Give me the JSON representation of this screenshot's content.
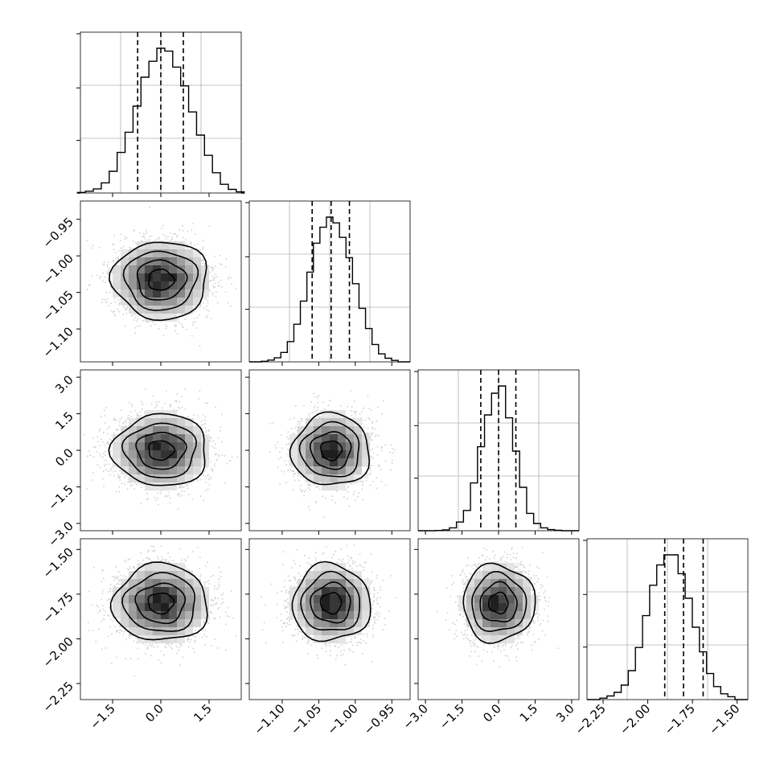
{
  "chart_data": {
    "type": "corner",
    "params": [
      {
        "range": [
          -2.5,
          2.5
        ],
        "ticks": [
          "−1.5",
          "0.0",
          "1.5"
        ],
        "tick_values": [
          -1.5,
          0.0,
          1.5
        ],
        "quantiles": [
          -0.72,
          0.0,
          0.7
        ],
        "mean": 0.0,
        "sd": 0.72,
        "hist": [
          0.004,
          0.012,
          0.028,
          0.07,
          0.15,
          0.28,
          0.42,
          0.6,
          0.8,
          0.91,
          1.0,
          0.98,
          0.87,
          0.74,
          0.56,
          0.4,
          0.26,
          0.14,
          0.06,
          0.025,
          0.008
        ]
      },
      {
        "range": [
          -1.145,
          -0.925
        ],
        "ticks": [
          "−1.10",
          "−1.05",
          "−1.00",
          "−0.95"
        ],
        "tick_values": [
          -1.1,
          -1.05,
          -1.0,
          -0.95
        ],
        "quantiles": [
          -1.059,
          -1.033,
          -1.008
        ],
        "mean": -1.033,
        "sd": 0.026,
        "hist": [
          0.004,
          0.012,
          0.028,
          0.065,
          0.14,
          0.26,
          0.42,
          0.62,
          0.82,
          0.93,
          1.0,
          0.96,
          0.86,
          0.72,
          0.54,
          0.37,
          0.23,
          0.12,
          0.055,
          0.025,
          0.01
        ]
      },
      {
        "range": [
          -3.3,
          3.3
        ],
        "ticks": [
          "−3.0",
          "−1.5",
          "0.0",
          "1.5",
          "3.0"
        ],
        "tick_values": [
          -3.0,
          -1.5,
          0.0,
          1.5,
          3.0
        ],
        "quantiles": [
          -0.73,
          0.0,
          0.71
        ],
        "mean": 0.0,
        "sd": 0.72,
        "hist": [
          0.002,
          0.006,
          0.02,
          0.06,
          0.14,
          0.33,
          0.58,
          0.8,
          0.95,
          1.0,
          0.78,
          0.55,
          0.3,
          0.12,
          0.05,
          0.02,
          0.008,
          0.003
        ]
      },
      {
        "range": [
          -2.34,
          -1.44
        ],
        "ticks": [
          "−2.25",
          "−2.00",
          "−1.75",
          "−1.50"
        ],
        "tick_values": [
          -2.25,
          -2.0,
          -1.75,
          -1.5
        ],
        "quantiles": [
          -1.905,
          -1.8,
          -1.69
        ],
        "mean": -1.8,
        "sd": 0.105,
        "hist": [
          0.01,
          0.025,
          0.05,
          0.1,
          0.2,
          0.36,
          0.58,
          0.79,
          0.93,
          1.0,
          1.0,
          0.87,
          0.7,
          0.5,
          0.33,
          0.18,
          0.09,
          0.04,
          0.02
        ]
      }
    ],
    "grid": true,
    "hist_style": "step",
    "quantile_lines": "dashed",
    "contour_levels": 4,
    "colors": {
      "line": "#000000",
      "grid": "#b0b0b0",
      "points": "#bdbdbd",
      "frame": "#000000"
    }
  }
}
